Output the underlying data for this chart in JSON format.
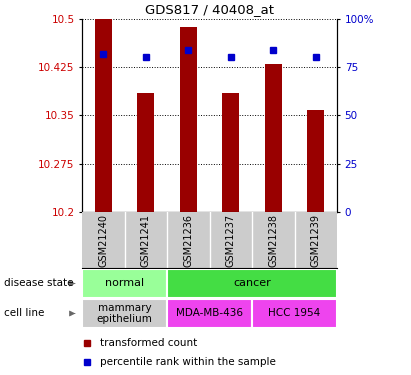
{
  "title": "GDS817 / 40408_at",
  "samples": [
    "GSM21240",
    "GSM21241",
    "GSM21236",
    "GSM21237",
    "GSM21238",
    "GSM21239"
  ],
  "bar_values": [
    10.5,
    10.385,
    10.487,
    10.385,
    10.43,
    10.358
  ],
  "percentile_values": [
    82,
    80,
    84,
    80,
    84,
    80
  ],
  "ylim_left": [
    10.2,
    10.5
  ],
  "ylim_right": [
    0,
    100
  ],
  "yticks_left": [
    10.2,
    10.275,
    10.35,
    10.425,
    10.5
  ],
  "ytick_labels_left": [
    "10.2",
    "10.275",
    "10.35",
    "10.425",
    "10.5"
  ],
  "yticks_right": [
    0,
    25,
    50,
    75,
    100
  ],
  "ytick_labels_right": [
    "0",
    "25",
    "50",
    "75",
    "100%"
  ],
  "bar_color": "#990000",
  "percentile_color": "#0000cc",
  "background_color": "#ffffff",
  "grid_color": "#000000",
  "disease_state_groups": [
    {
      "label": "normal",
      "start": 0,
      "end": 2,
      "color": "#99ff99"
    },
    {
      "label": "cancer",
      "start": 2,
      "end": 6,
      "color": "#44dd44"
    }
  ],
  "cell_line_groups": [
    {
      "label": "mammary\nepithelium",
      "start": 0,
      "end": 2,
      "color": "#cccccc"
    },
    {
      "label": "MDA-MB-436",
      "start": 2,
      "end": 4,
      "color": "#ee44ee"
    },
    {
      "label": "HCC 1954",
      "start": 4,
      "end": 6,
      "color": "#ee44ee"
    }
  ],
  "legend_items": [
    {
      "label": "transformed count",
      "color": "#990000"
    },
    {
      "label": "percentile rank within the sample",
      "color": "#0000cc"
    }
  ],
  "left_label_color": "#cc0000",
  "right_label_color": "#0000cc",
  "bar_width": 0.4,
  "xlabel_bg": "#cccccc",
  "side_label_ds": "disease state",
  "side_label_cl": "cell line"
}
